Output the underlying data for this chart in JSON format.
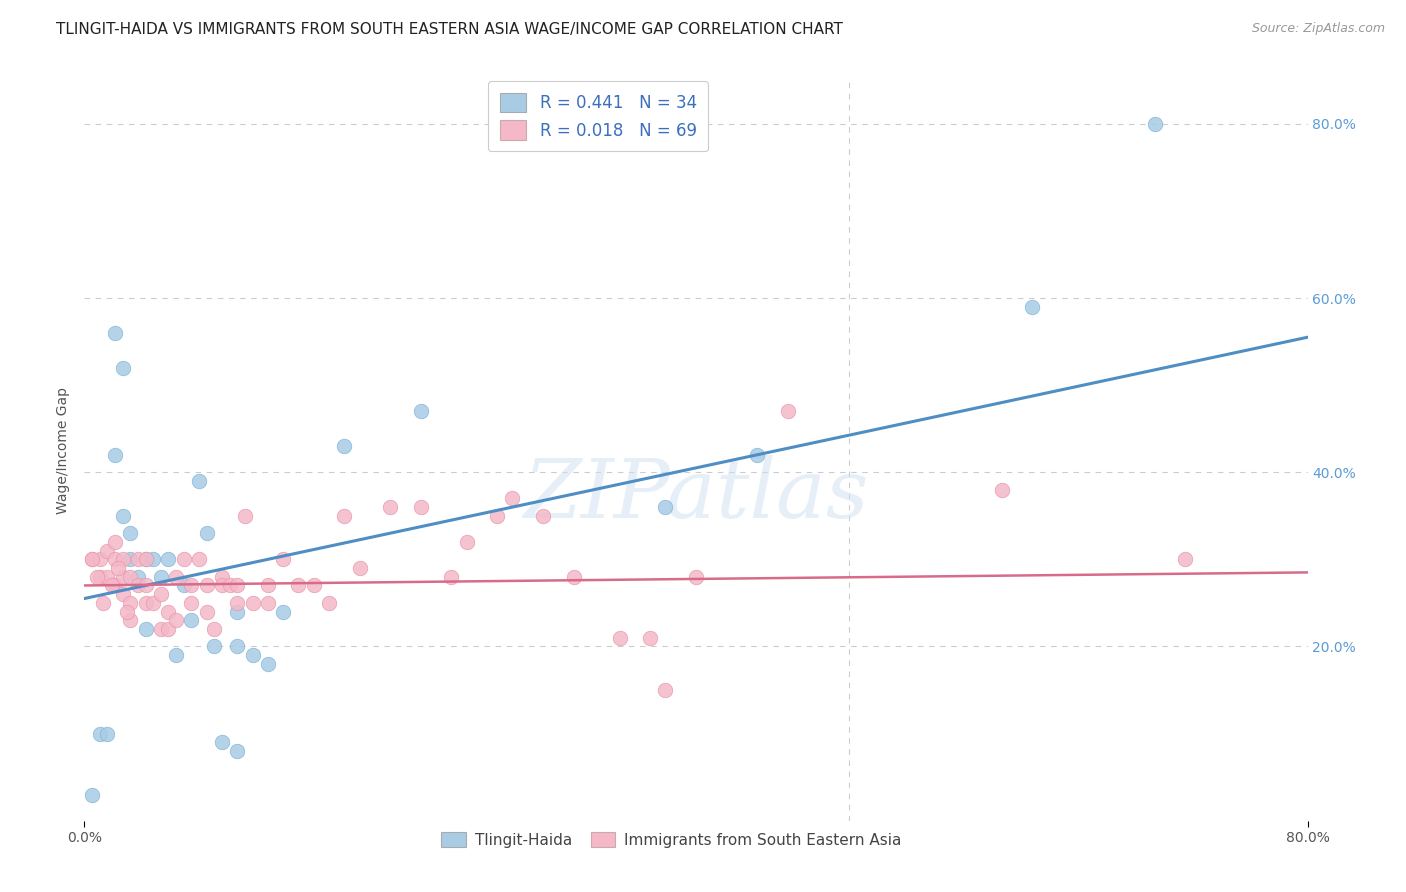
{
  "title": "TLINGIT-HAIDA VS IMMIGRANTS FROM SOUTH EASTERN ASIA WAGE/INCOME GAP CORRELATION CHART",
  "source": "Source: ZipAtlas.com",
  "ylabel": "Wage/Income Gap",
  "xlim": [
    0.0,
    0.8
  ],
  "ylim": [
    0.0,
    0.85
  ],
  "y_ticks_right": [
    0.2,
    0.4,
    0.6,
    0.8
  ],
  "y_tick_labels_right": [
    "20.0%",
    "40.0%",
    "60.0%",
    "80.0%"
  ],
  "blue_color": "#a8cce4",
  "pink_color": "#f4b8c8",
  "line_blue": "#4e8ec4",
  "line_pink": "#d96b8a",
  "watermark": "ZIPatlas",
  "blue_scatter_x": [
    0.005,
    0.01,
    0.015,
    0.02,
    0.025,
    0.03,
    0.03,
    0.035,
    0.04,
    0.04,
    0.045,
    0.05,
    0.055,
    0.06,
    0.065,
    0.07,
    0.075,
    0.08,
    0.085,
    0.09,
    0.1,
    0.1,
    0.1,
    0.11,
    0.12,
    0.13,
    0.17,
    0.22,
    0.38,
    0.44,
    0.62,
    0.7,
    0.02,
    0.025
  ],
  "blue_scatter_y": [
    0.03,
    0.1,
    0.1,
    0.56,
    0.52,
    0.3,
    0.33,
    0.28,
    0.3,
    0.22,
    0.3,
    0.28,
    0.3,
    0.19,
    0.27,
    0.23,
    0.39,
    0.33,
    0.2,
    0.09,
    0.2,
    0.08,
    0.24,
    0.19,
    0.18,
    0.24,
    0.43,
    0.47,
    0.36,
    0.42,
    0.59,
    0.8,
    0.42,
    0.35
  ],
  "pink_scatter_x": [
    0.005,
    0.01,
    0.01,
    0.015,
    0.015,
    0.02,
    0.02,
    0.02,
    0.025,
    0.025,
    0.025,
    0.03,
    0.03,
    0.03,
    0.035,
    0.035,
    0.04,
    0.04,
    0.04,
    0.045,
    0.05,
    0.05,
    0.055,
    0.055,
    0.06,
    0.06,
    0.065,
    0.07,
    0.07,
    0.075,
    0.08,
    0.08,
    0.085,
    0.09,
    0.09,
    0.095,
    0.1,
    0.1,
    0.105,
    0.11,
    0.12,
    0.12,
    0.13,
    0.14,
    0.15,
    0.16,
    0.17,
    0.18,
    0.2,
    0.22,
    0.24,
    0.25,
    0.27,
    0.28,
    0.3,
    0.32,
    0.35,
    0.37,
    0.38,
    0.4,
    0.46,
    0.6,
    0.72,
    0.005,
    0.008,
    0.012,
    0.018,
    0.022,
    0.028
  ],
  "pink_scatter_y": [
    0.3,
    0.3,
    0.28,
    0.31,
    0.28,
    0.32,
    0.3,
    0.27,
    0.3,
    0.28,
    0.26,
    0.28,
    0.25,
    0.23,
    0.3,
    0.27,
    0.3,
    0.27,
    0.25,
    0.25,
    0.26,
    0.22,
    0.24,
    0.22,
    0.28,
    0.23,
    0.3,
    0.27,
    0.25,
    0.3,
    0.27,
    0.24,
    0.22,
    0.28,
    0.27,
    0.27,
    0.27,
    0.25,
    0.35,
    0.25,
    0.27,
    0.25,
    0.3,
    0.27,
    0.27,
    0.25,
    0.35,
    0.29,
    0.36,
    0.36,
    0.28,
    0.32,
    0.35,
    0.37,
    0.35,
    0.28,
    0.21,
    0.21,
    0.15,
    0.28,
    0.47,
    0.38,
    0.3,
    0.3,
    0.28,
    0.25,
    0.27,
    0.29,
    0.24
  ],
  "bg_color": "#ffffff",
  "grid_color": "#cccccc",
  "title_fontsize": 11,
  "axis_label_fontsize": 10,
  "tick_fontsize": 10,
  "blue_line_start_y": 0.255,
  "blue_line_end_y": 0.555,
  "pink_line_start_y": 0.27,
  "pink_line_end_y": 0.285
}
